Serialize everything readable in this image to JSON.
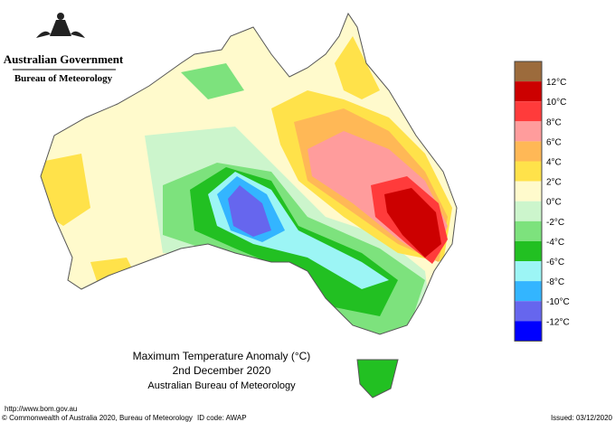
{
  "header": {
    "title": "Australian Government",
    "subtitle": "Bureau of Meteorology"
  },
  "map": {
    "title_lines": [
      "Maximum Temperature Anomaly (°C)",
      "2nd December 2020",
      "Australian Bureau of Meteorology"
    ]
  },
  "legend": {
    "colors": [
      "#9c6b3c",
      "#cc0000",
      "#ff3b3b",
      "#ff9c9c",
      "#ffb856",
      "#ffe24a",
      "#fffacc",
      "#ccf5cc",
      "#7de27d",
      "#22c022",
      "#9cf5f5",
      "#33b5ff",
      "#6666ee",
      "#0000ff"
    ],
    "labels": [
      "12°C",
      "10°C",
      "8°C",
      "6°C",
      "4°C",
      "2°C",
      "0°C",
      "-2°C",
      "-4°C",
      "-6°C",
      "-8°C",
      "-10°C",
      "-12°C"
    ]
  },
  "footer": {
    "url": "http://www.bom.gov.au",
    "copyright": "© Commonwealth of Australia 2020, Bureau of Meteorology",
    "id_code": "ID code: AWAP",
    "issued": "Issued: 03/12/2020"
  }
}
